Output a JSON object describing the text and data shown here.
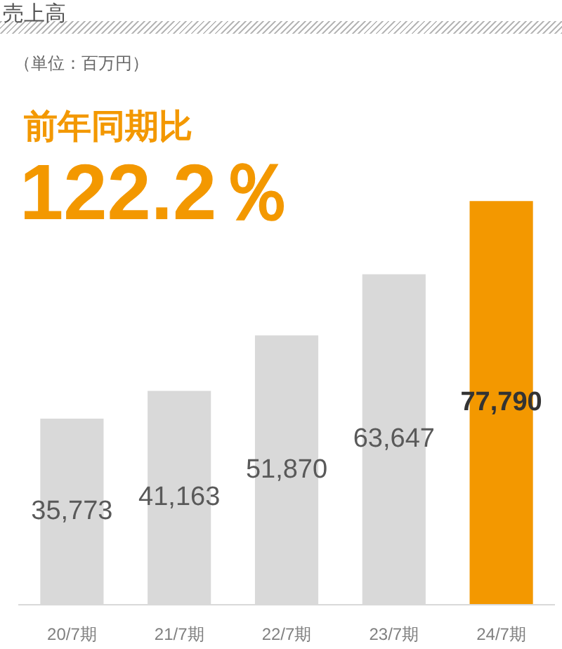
{
  "chart_data": {
    "type": "bar",
    "title": "売上高",
    "subtitle": "（単位：百万円）",
    "annotations": [
      "前年同期比",
      "122.2％"
    ],
    "categories": [
      "20/7期",
      "21/7期",
      "22/7期",
      "23/7期",
      "24/7期"
    ],
    "values": [
      35773,
      41163,
      51870,
      63647,
      77790
    ],
    "colors": [
      "#d9d9d9",
      "#d9d9d9",
      "#d9d9d9",
      "#d9d9d9",
      "#f39800"
    ],
    "value_labels": [
      "35,773",
      "41,163",
      "51,870",
      "63,647",
      "77,790"
    ],
    "tick_labels": "x"
  }
}
